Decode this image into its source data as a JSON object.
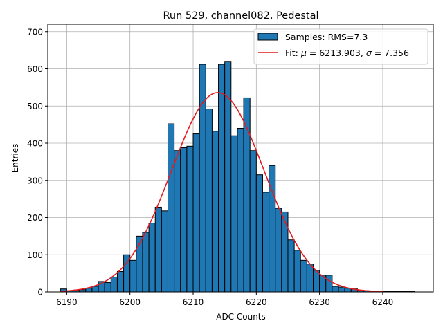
{
  "chart_data": {
    "type": "bar",
    "title": "Run 529, channel082, Pedestal",
    "xlabel": "ADC Counts",
    "ylabel": "Entries",
    "xlim": [
      6187,
      6248
    ],
    "ylim": [
      0,
      720
    ],
    "xticks": [
      6190,
      6200,
      6210,
      6220,
      6230,
      6240
    ],
    "yticks": [
      0,
      100,
      200,
      300,
      400,
      500,
      600,
      700
    ],
    "grid": true,
    "legend_position": "top-right",
    "histogram": {
      "name": "Samples: RMS=7.3",
      "color": "#1f77b4",
      "edgecolor": "#000000",
      "bin_start": 6189,
      "bin_width": 1,
      "counts": [
        8,
        3,
        5,
        6,
        10,
        15,
        28,
        25,
        40,
        55,
        100,
        85,
        150,
        160,
        185,
        228,
        218,
        452,
        380,
        388,
        392,
        425,
        612,
        492,
        432,
        612,
        620,
        420,
        440,
        522,
        380,
        315,
        268,
        340,
        225,
        215,
        140,
        112,
        85,
        75,
        58,
        45,
        45,
        15,
        13,
        10,
        8,
        4,
        3,
        2,
        2,
        1,
        1,
        1,
        1,
        1
      ]
    },
    "fit": {
      "name": "Fit: μ = 6213.903, σ = 7.356",
      "label_prefix": "Fit: ",
      "mu_symbol": "μ",
      "mu_text": " = 6213.903, ",
      "sigma_symbol": "σ",
      "sigma_text": " = 7.356",
      "color": "#e41a1c",
      "mu": 6213.903,
      "sigma": 7.356,
      "amplitude": 536,
      "x_range": [
        6189,
        6240
      ]
    }
  }
}
